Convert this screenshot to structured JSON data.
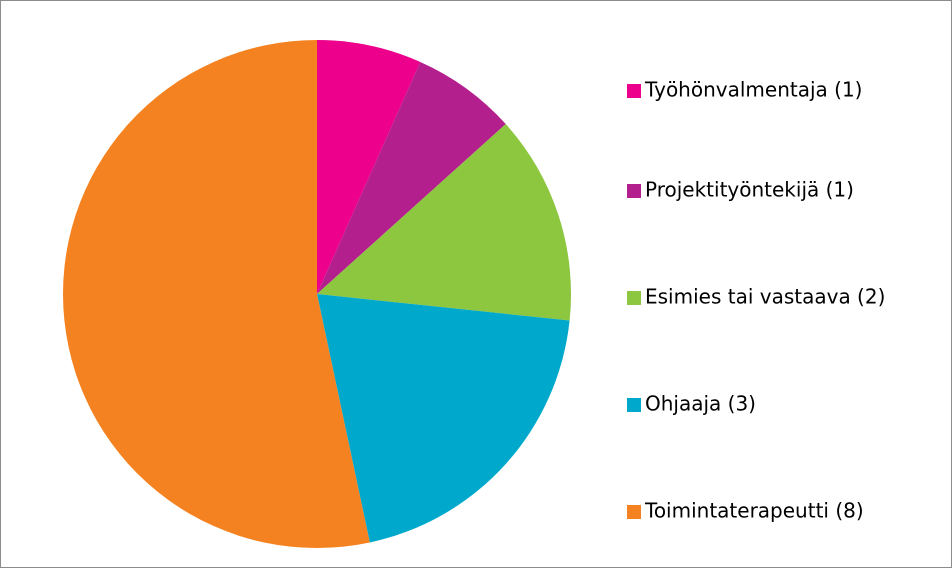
{
  "chart_data": {
    "type": "pie",
    "categories": [
      "Työhönvalmentaja (1)",
      "Projektityöntekijä (1)",
      "Esimies tai vastaava (2)",
      "Ohjaaja (3)",
      "Toimintaterapeutti (8)"
    ],
    "values": [
      1,
      1,
      2,
      3,
      8
    ],
    "colors": [
      "#ec008c",
      "#b41f8e",
      "#8dc63f",
      "#00a9cc",
      "#f58220"
    ],
    "legend": "right"
  }
}
